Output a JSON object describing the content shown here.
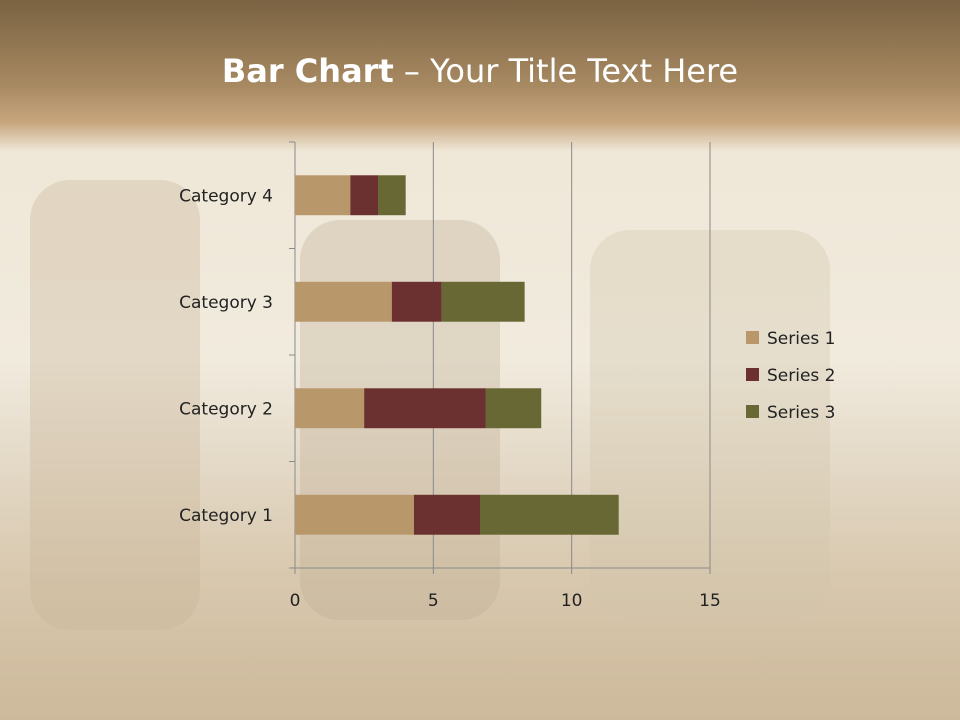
{
  "slide": {
    "title_bold": "Bar Chart",
    "title_rest": " – Your Title Text Here"
  },
  "chart_data": {
    "type": "bar",
    "orientation": "horizontal",
    "stacked": true,
    "categories": [
      "Category 1",
      "Category 2",
      "Category 3",
      "Category 4"
    ],
    "series": [
      {
        "name": "Series 1",
        "values": [
          4.3,
          2.5,
          3.5,
          2.0
        ],
        "color": "#b8976b"
      },
      {
        "name": "Series 2",
        "values": [
          2.4,
          4.4,
          1.8,
          1.0
        ],
        "color": "#6b3030"
      },
      {
        "name": "Series 3",
        "values": [
          5.0,
          2.0,
          3.0,
          1.0
        ],
        "color": "#676833"
      }
    ],
    "xlim": [
      0,
      15
    ],
    "xticks": [
      0,
      5,
      10,
      15
    ],
    "grid": true,
    "legend": "right"
  }
}
